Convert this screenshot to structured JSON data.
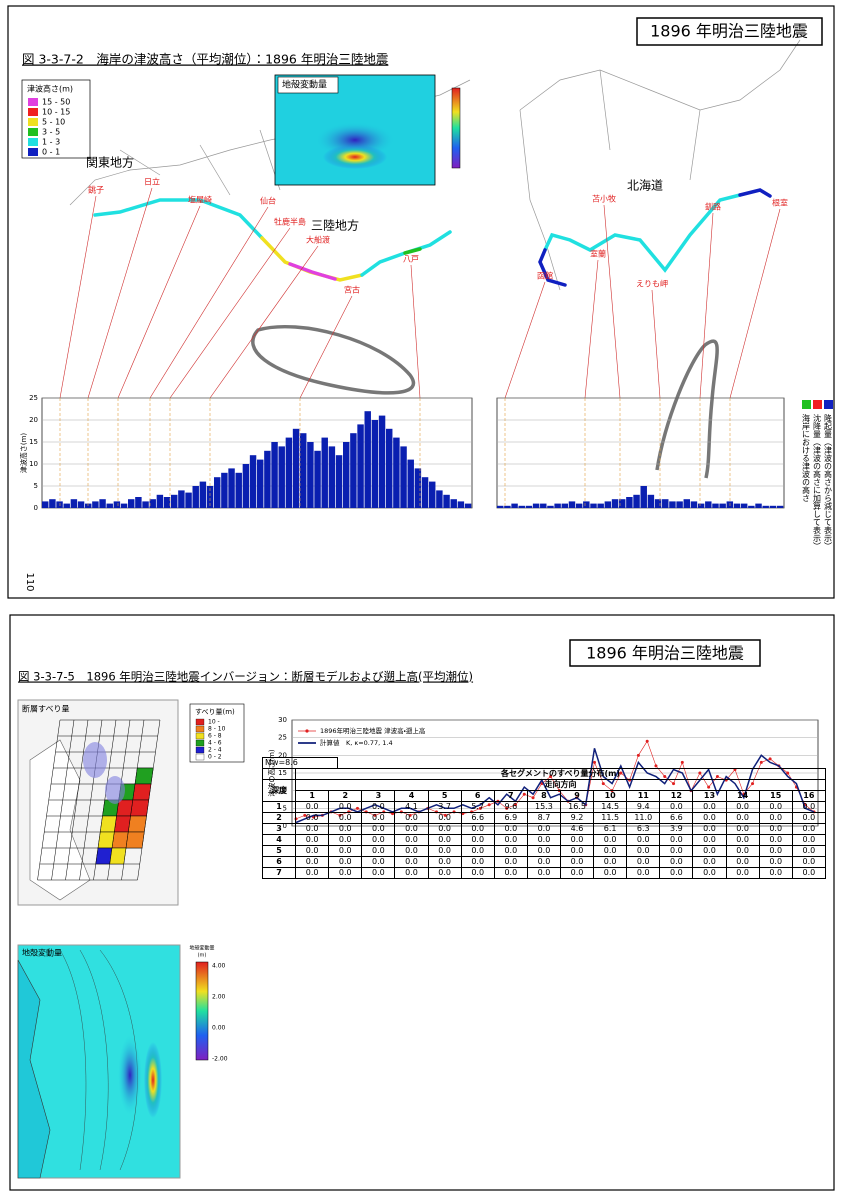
{
  "top_page": {
    "header": "1896 年明治三陸地震",
    "figure_title": "図 3-3-7-2　海岸の津波高さ（平均潮位）：1896 年明治三陸地震",
    "legend": {
      "title": "津波高さ(m)",
      "items": [
        {
          "label": "15 - 50",
          "color": "#e040e0"
        },
        {
          "label": "10 - 15",
          "color": "#f02020"
        },
        {
          "label": "5 - 10",
          "color": "#f0e020"
        },
        {
          "label": "3 - 5",
          "color": "#20c020"
        },
        {
          "label": "1 - 3",
          "color": "#20e0e0"
        },
        {
          "label": "0 - 1",
          "color": "#1020c0"
        }
      ]
    },
    "inset_title": "地殻変動量",
    "regions": [
      "関東地方",
      "三陸地方",
      "北海道"
    ],
    "places": [
      "銚子",
      "日立",
      "塩屋崎",
      "仙台",
      "牡鹿半島",
      "大船渡",
      "宮古",
      "八戸",
      "函館",
      "室蘭",
      "苫小牧",
      "えりも岬",
      "釧路",
      "根室"
    ],
    "side_legend": [
      {
        "label": "海岸における津波の高さ",
        "color": "#20c020"
      },
      {
        "label": "沈降量（津波の高さに加算して表示）",
        "color": "#f02020"
      },
      {
        "label": "隆起量（津波の高さから減じて表示）",
        "color": "#1020c0"
      }
    ],
    "page_number": "110",
    "chart": {
      "type": "bar",
      "y_label": "津波高さ(m)",
      "ylim": [
        0,
        25
      ],
      "yticks": [
        0,
        5,
        10,
        15,
        20,
        25
      ],
      "grid": true,
      "color": "#0a1fb0",
      "panels": [
        {
          "values": [
            1.5,
            2,
            1.5,
            1,
            2,
            1.5,
            1,
            1.5,
            2,
            1,
            1.5,
            1,
            2,
            2.5,
            1.5,
            2,
            3,
            2.5,
            3,
            4,
            3.5,
            5,
            6,
            5,
            7,
            8,
            9,
            8,
            10,
            12,
            11,
            13,
            15,
            14,
            16,
            18,
            17,
            15,
            13,
            16,
            14,
            12,
            15,
            17,
            19,
            22,
            20,
            21,
            18,
            16,
            14,
            11,
            9,
            7,
            6,
            4,
            3,
            2,
            1.5,
            1
          ]
        },
        {
          "values": [
            0.5,
            0.5,
            1,
            0.5,
            0.5,
            1,
            1,
            0.5,
            1,
            1,
            1.5,
            1,
            1.5,
            1,
            1,
            1.5,
            2,
            2,
            2.5,
            3,
            5,
            3,
            2,
            2,
            1.5,
            1.5,
            2,
            1.5,
            1,
            1.5,
            1,
            1,
            1.5,
            1,
            1,
            0.5,
            1,
            0.5,
            0.5,
            0.5
          ]
        }
      ]
    }
  },
  "bottom_page": {
    "header": "1896 年明治三陸地震",
    "figure_title": "図 3-3-7-5　1896 年明治三陸地震インバージョン：断層モデルおよび遡上高(平均潮位)",
    "slip_map": {
      "title": "断層すべり量",
      "legend_title": "すべり量(m)",
      "legend": [
        {
          "label": "10 -",
          "color": "#e02020"
        },
        {
          "label": "8 - 10",
          "color": "#f08020"
        },
        {
          "label": "6 - 8",
          "color": "#f0e020"
        },
        {
          "label": "4 - 6",
          "color": "#20a020"
        },
        {
          "label": "2 - 4",
          "color": "#2020d0"
        },
        {
          "label": "0 - 2",
          "color": "#ffffff"
        }
      ]
    },
    "table": {
      "mw": "Mw=8.6",
      "title": "各セグメントのすべり量分布(m)",
      "depth_label": "深度",
      "strike_label": "走向方向",
      "columns": [
        1,
        2,
        3,
        4,
        5,
        6,
        7,
        8,
        9,
        10,
        11,
        12,
        13,
        14,
        15,
        16
      ],
      "rows": [
        {
          "depth": 1,
          "values": [
            "0.0",
            "0.0",
            "0.0",
            "4.1",
            "3.7",
            "5.7",
            "9.6",
            "15.3",
            "16.5",
            "14.5",
            "9.4",
            "0.0",
            "0.0",
            "0.0",
            "0.0",
            "0.0"
          ]
        },
        {
          "depth": 2,
          "values": [
            "0.0",
            "0.0",
            "0.0",
            "0.0",
            "0.0",
            "6.6",
            "6.9",
            "8.7",
            "9.2",
            "11.5",
            "11.0",
            "6.6",
            "0.0",
            "0.0",
            "0.0",
            "0.0"
          ]
        },
        {
          "depth": 3,
          "values": [
            "0.0",
            "0.0",
            "0.0",
            "0.0",
            "0.0",
            "0.0",
            "0.0",
            "0.0",
            "4.6",
            "6.1",
            "6.3",
            "3.9",
            "0.0",
            "0.0",
            "0.0",
            "0.0"
          ]
        },
        {
          "depth": 4,
          "values": [
            "0.0",
            "0.0",
            "0.0",
            "0.0",
            "0.0",
            "0.0",
            "0.0",
            "0.0",
            "0.0",
            "0.0",
            "0.0",
            "0.0",
            "0.0",
            "0.0",
            "0.0",
            "0.0"
          ]
        },
        {
          "depth": 5,
          "values": [
            "0.0",
            "0.0",
            "0.0",
            "0.0",
            "0.0",
            "0.0",
            "0.0",
            "0.0",
            "0.0",
            "0.0",
            "0.0",
            "0.0",
            "0.0",
            "0.0",
            "0.0",
            "0.0"
          ]
        },
        {
          "depth": 6,
          "values": [
            "0.0",
            "0.0",
            "0.0",
            "0.0",
            "0.0",
            "0.0",
            "0.0",
            "0.0",
            "0.0",
            "0.0",
            "0.0",
            "0.0",
            "0.0",
            "0.0",
            "0.0",
            "0.0"
          ]
        },
        {
          "depth": 7,
          "values": [
            "0.0",
            "0.0",
            "0.0",
            "0.0",
            "0.0",
            "0.0",
            "0.0",
            "0.0",
            "0.0",
            "0.0",
            "0.0",
            "0.0",
            "0.0",
            "0.0",
            "0.0",
            "0.0"
          ]
        }
      ]
    },
    "deform_map": {
      "title": "地殻変動量",
      "colorbar_title": "地殻変動量",
      "colorbar_unit": "(m)",
      "colorbar_ticks": [
        "4.00",
        "2.00",
        "0.00",
        "-2.00"
      ]
    },
    "line_chart": {
      "type": "line",
      "y_label": "津波の高さ(m)",
      "ylim": [
        0,
        30
      ],
      "yticks": [
        0,
        5,
        10,
        15,
        20,
        25,
        30
      ],
      "grid": true,
      "series": [
        {
          "name": "1896年明治三陸地震 津波高・遡上高",
          "color": "#e02020",
          "markers": true,
          "values": [
            2,
            3,
            2.5,
            3,
            4,
            3,
            4,
            5,
            4,
            3,
            4,
            3.5,
            4,
            3,
            4,
            5,
            4,
            3,
            4,
            3.5,
            4,
            5,
            6,
            7,
            5,
            6,
            9,
            8,
            12,
            14,
            10,
            7,
            8,
            6,
            18,
            12,
            10,
            15,
            13,
            20,
            24,
            17,
            14,
            12,
            18,
            10,
            15,
            11,
            14,
            13,
            16,
            9,
            12,
            18,
            19,
            17,
            15,
            11,
            6,
            4
          ]
        },
        {
          "name": "計算値　K, κ=0.77, 1.4",
          "color": "#10207a",
          "markers": false,
          "values": [
            1,
            2,
            3,
            3,
            4,
            5,
            5,
            4,
            5,
            6,
            5,
            4,
            5,
            5,
            4,
            5,
            6,
            5,
            5,
            6,
            5,
            6,
            8,
            6,
            9,
            7,
            11,
            9,
            13,
            8,
            9,
            7,
            8,
            6,
            22,
            14,
            12,
            17,
            11,
            18,
            15,
            14,
            12,
            16,
            15,
            10,
            13,
            16,
            9,
            14,
            12,
            8,
            16,
            20,
            18,
            17,
            14,
            12,
            5,
            4
          ]
        }
      ]
    }
  }
}
